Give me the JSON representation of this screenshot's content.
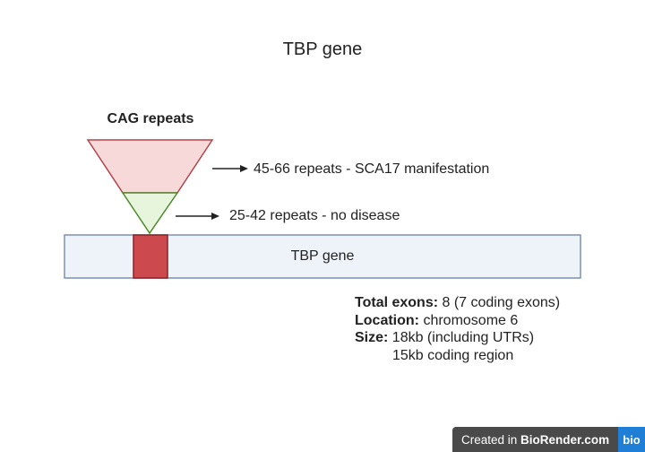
{
  "title": "TBP gene",
  "cag_label": "CAG repeats",
  "annotations": {
    "upper": "45-66 repeats - SCA17 manifestation",
    "lower": "25-42 repeats - no disease"
  },
  "gene_bar_label": "TBP gene",
  "info": {
    "exons_key": "Total exons:",
    "exons_value": " 8 (7 coding exons)",
    "location_key": "Location:",
    "location_value": " chromosome 6",
    "size_key": "Size:",
    "size_value": " 18kb (including UTRs)",
    "size_value_2": "15kb coding region"
  },
  "badge": {
    "prefix": "Created in ",
    "brand": "BioRender.com",
    "logo": "bio"
  },
  "colors": {
    "upper_triangle_fill": "#f8d9d9",
    "upper_triangle_stroke": "#b2454c",
    "lower_triangle_fill": "#e6f5dc",
    "lower_triangle_stroke": "#4e8a2e",
    "gene_bar_fill": "#eef3fa",
    "gene_bar_stroke": "#7c8fb6",
    "exon_fill": "#cc4a4d",
    "exon_stroke": "#8a2326"
  }
}
